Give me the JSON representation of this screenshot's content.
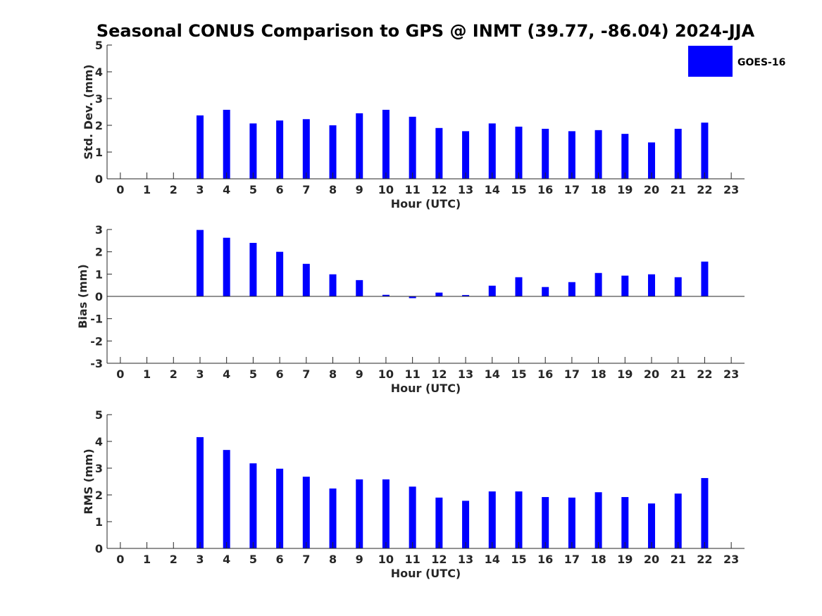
{
  "chart_data": {
    "title": "Seasonal CONUS Comparison to GPS @ INMT (39.77, -86.04) 2024-JJA",
    "legend": [
      "GOES-16"
    ],
    "legend_position": "top-right",
    "colors": {
      "series": "#0000FF"
    },
    "panels": [
      {
        "type": "bar",
        "ylabel": "Std. Dev. (mm)",
        "xlabel": "Hour (UTC)",
        "ylim": [
          0,
          5
        ],
        "yticks": [
          "0",
          "1",
          "2",
          "3",
          "4",
          "5"
        ],
        "categories": [
          "0",
          "1",
          "2",
          "3",
          "4",
          "5",
          "6",
          "7",
          "8",
          "9",
          "10",
          "11",
          "12",
          "13",
          "14",
          "15",
          "16",
          "17",
          "18",
          "19",
          "20",
          "21",
          "22",
          "23"
        ],
        "series": [
          {
            "name": "GOES-16",
            "values": [
              null,
              null,
              null,
              2.37,
              2.58,
              2.07,
              2.18,
              2.23,
              2.0,
              2.45,
              2.58,
              2.32,
              1.9,
              1.78,
              2.07,
              1.95,
              1.87,
              1.78,
              1.82,
              1.68,
              1.36,
              1.87,
              2.1,
              null
            ]
          }
        ]
      },
      {
        "type": "bar",
        "ylabel": "Bias (mm)",
        "xlabel": "Hour (UTC)",
        "ylim": [
          -3,
          3
        ],
        "yticks": [
          "-3",
          "-2",
          "-1",
          "0",
          "1",
          "2",
          "3"
        ],
        "categories": [
          "0",
          "1",
          "2",
          "3",
          "4",
          "5",
          "6",
          "7",
          "8",
          "9",
          "10",
          "11",
          "12",
          "13",
          "14",
          "15",
          "16",
          "17",
          "18",
          "19",
          "20",
          "21",
          "22",
          "23"
        ],
        "series": [
          {
            "name": "GOES-16",
            "values": [
              null,
              null,
              null,
              2.98,
              2.63,
              2.4,
              2.0,
              1.46,
              0.99,
              0.73,
              0.07,
              -0.08,
              0.17,
              0.06,
              0.48,
              0.86,
              0.42,
              0.64,
              1.05,
              0.93,
              0.99,
              0.86,
              1.56,
              null
            ]
          }
        ]
      },
      {
        "type": "bar",
        "ylabel": "RMS (mm)",
        "xlabel": "Hour (UTC)",
        "ylim": [
          0,
          5
        ],
        "yticks": [
          "0",
          "1",
          "2",
          "3",
          "4",
          "5"
        ],
        "categories": [
          "0",
          "1",
          "2",
          "3",
          "4",
          "5",
          "6",
          "7",
          "8",
          "9",
          "10",
          "11",
          "12",
          "13",
          "14",
          "15",
          "16",
          "17",
          "18",
          "19",
          "20",
          "21",
          "22",
          "23"
        ],
        "series": [
          {
            "name": "GOES-16",
            "values": [
              null,
              null,
              null,
              4.16,
              3.68,
              3.18,
              2.98,
              2.68,
              2.24,
              2.58,
              2.58,
              2.31,
              1.9,
              1.78,
              2.13,
              2.13,
              1.92,
              1.9,
              2.1,
              1.92,
              1.68,
              2.05,
              2.63,
              null
            ]
          }
        ]
      }
    ]
  }
}
